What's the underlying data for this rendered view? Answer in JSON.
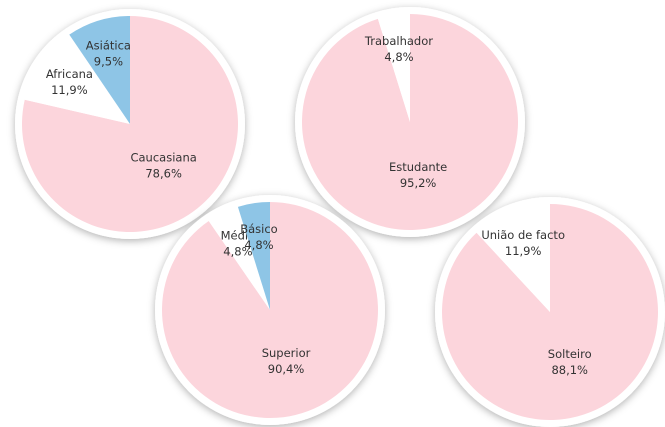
{
  "chart_data": [
    {
      "type": "pie",
      "categories": [
        "Caucasiana",
        "Africana",
        "Asiática"
      ],
      "values": [
        78.6,
        11.9,
        9.5
      ],
      "value_labels": [
        "78,6%",
        "11,9%",
        "9,5%"
      ],
      "colors": [
        "#fcd5dc",
        "#ffffff",
        "#8ec5e6"
      ]
    },
    {
      "type": "pie",
      "categories": [
        "Estudante",
        "Trabalhador"
      ],
      "values": [
        95.2,
        4.8
      ],
      "value_labels": [
        "95,2%",
        "4,8%"
      ],
      "colors": [
        "#fcd5dc",
        "#ffffff"
      ]
    },
    {
      "type": "pie",
      "categories": [
        "Superior",
        "Médio",
        "Básico"
      ],
      "values": [
        90.4,
        4.8,
        4.8
      ],
      "value_labels": [
        "90,4%",
        "4,8%",
        "4,8%"
      ],
      "colors": [
        "#fcd5dc",
        "#ffffff",
        "#8ec5e6"
      ]
    },
    {
      "type": "pie",
      "categories": [
        "Solteiro",
        "União de facto"
      ],
      "values": [
        88.1,
        11.9
      ],
      "value_labels": [
        "88,1%",
        "11,9%"
      ],
      "colors": [
        "#fcd5dc",
        "#ffffff"
      ]
    }
  ]
}
